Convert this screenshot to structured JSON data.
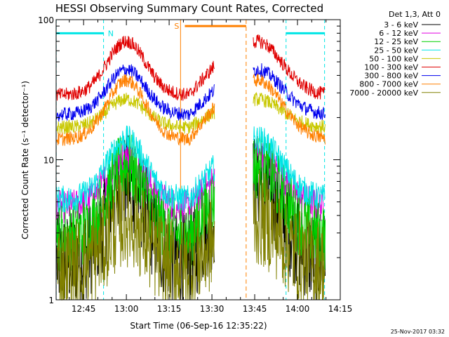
{
  "chart_data": {
    "type": "line",
    "title": "HESSI Observing Summary Count Rates, Corrected",
    "xlabel": "Start Time (06-Sep-16 12:35:22)",
    "ylabel": "Corrected Count Rate (s⁻¹ detector⁻¹)",
    "x_ticks": [
      "12:45",
      "13:00",
      "13:15",
      "13:30",
      "13:45",
      "14:00",
      "14:15"
    ],
    "x_tick_minutes": [
      45,
      60,
      75,
      90,
      105,
      120,
      135
    ],
    "x_range_minutes": [
      35.37,
      135
    ],
    "y_scale": "log",
    "y_ticks": [
      "1",
      "10",
      "100"
    ],
    "y_range": [
      1,
      100
    ],
    "legend_placement": "top-right outside",
    "legend_title": "Det 1,3, Att 0",
    "gap_minutes": [
      91,
      104.5
    ],
    "series": [
      {
        "name": "3 - 6 keV",
        "color": "#000000",
        "base": 1.9,
        "peak": 7.0,
        "noise": 0.35
      },
      {
        "name": "6 - 12 keV",
        "color": "#e000e0",
        "base": 4.6,
        "peak": 10.5,
        "noise": 0.12
      },
      {
        "name": "12 - 25 keV",
        "color": "#00d000",
        "base": 2.8,
        "peak": 9.0,
        "noise": 0.25
      },
      {
        "name": "25 - 50 keV",
        "color": "#00e5e5",
        "base": 5.2,
        "peak": 14.0,
        "noise": 0.1
      },
      {
        "name": "50 - 100 keV",
        "color": "#c8c800",
        "base": 17.0,
        "peak": 27.0,
        "noise": 0.05
      },
      {
        "name": "100 - 300 keV",
        "color": "#e00000",
        "base": 29.0,
        "peak": 70.0,
        "noise": 0.05
      },
      {
        "name": "300 - 800 keV",
        "color": "#0000ee",
        "base": 21.0,
        "peak": 44.0,
        "noise": 0.05
      },
      {
        "name": "800 - 7000 keV",
        "color": "#ff8000",
        "base": 14.0,
        "peak": 37.0,
        "noise": 0.05
      },
      {
        "name": "7000 - 20000 keV",
        "color": "#808000",
        "base": 1.7,
        "peak": 3.8,
        "noise": 0.35
      }
    ],
    "flags": [
      {
        "label": "N",
        "color": "#00e5e5",
        "start_min": 35.4,
        "end_min": 52.0,
        "y_value": 80
      },
      {
        "label": "",
        "color": "#00e5e5",
        "start_min": 116.0,
        "end_min": 129.5,
        "y_value": 80
      },
      {
        "label": "S",
        "color": "#ff8000",
        "start_min": 79.0,
        "end_min": 102.0,
        "y_value": 90
      }
    ]
  },
  "footer": {
    "timestamp": "25-Nov-2017 03:32"
  }
}
